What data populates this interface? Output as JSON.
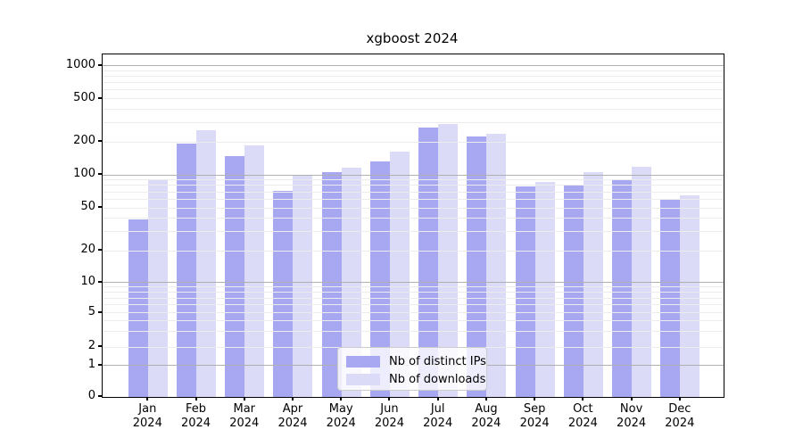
{
  "chart_data": {
    "type": "bar",
    "title": "xgboost 2024",
    "categories": [
      "Jan 2024",
      "Feb 2024",
      "Mar 2024",
      "Apr 2024",
      "May 2024",
      "Jun 2024",
      "Jul 2024",
      "Aug 2024",
      "Sep 2024",
      "Oct 2024",
      "Nov 2024",
      "Dec 2024"
    ],
    "x_tick_month_labels": [
      "Jan",
      "Feb",
      "Mar",
      "Apr",
      "May",
      "Jun",
      "Jul",
      "Aug",
      "Sep",
      "Oct",
      "Nov",
      "Dec"
    ],
    "x_tick_year_label": "2024",
    "series": [
      {
        "name": "Nb of distinct IPs",
        "color": "#a7a7f2",
        "values": [
          39,
          191,
          147,
          71,
          105,
          131,
          268,
          224,
          78,
          81,
          91,
          59
        ]
      },
      {
        "name": "Nb of downloads",
        "color": "#dbdbf8",
        "values": [
          90,
          256,
          184,
          99,
          116,
          163,
          291,
          237,
          86,
          104,
          118,
          64
        ]
      }
    ],
    "xlabel": "",
    "ylabel": "",
    "yscale": "symlog",
    "y_ticks": [
      0,
      1,
      2,
      5,
      10,
      20,
      50,
      100,
      200,
      500,
      1000
    ],
    "ylim": [
      0,
      1400
    ],
    "grid": "horizontal major and minor, drawn over bars",
    "legend_position": "lower center"
  },
  "colors": {
    "major_grid": "#b0b0b0",
    "minor_grid": "#ececec",
    "spine": "#000000",
    "background": "#ffffff"
  }
}
